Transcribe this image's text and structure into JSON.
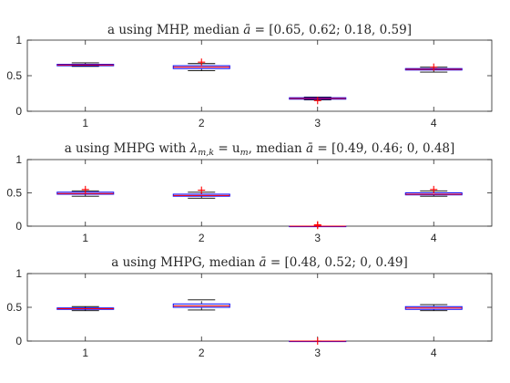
{
  "chart_data": [
    {
      "type": "box",
      "title": "a using MHP, median ā = [0.65, 0.62; 0.18, 0.59]",
      "title_prefix": "a using MHP, median ",
      "title_suffix": " = [0.65, 0.62; 0.18, 0.59]",
      "categories": [
        "1",
        "2",
        "3",
        "4"
      ],
      "ylim": [
        0,
        1
      ],
      "yticks": [
        "0",
        "0.5",
        "1"
      ],
      "boxes": [
        {
          "category": "1",
          "min": 0.63,
          "q1": 0.64,
          "median": 0.65,
          "q3": 0.66,
          "max": 0.68,
          "outliers": []
        },
        {
          "category": "2",
          "min": 0.57,
          "q1": 0.6,
          "median": 0.62,
          "q3": 0.64,
          "max": 0.67,
          "outliers": [
            0.69
          ]
        },
        {
          "category": "3",
          "min": 0.16,
          "q1": 0.17,
          "median": 0.18,
          "q3": 0.19,
          "max": 0.2,
          "outliers": [
            0.15
          ]
        },
        {
          "category": "4",
          "min": 0.55,
          "q1": 0.58,
          "median": 0.59,
          "q3": 0.6,
          "max": 0.62,
          "outliers": [
            0.62
          ]
        }
      ]
    },
    {
      "type": "box",
      "title": "a using MHPG with λ_{m,k} = u_m, median ā = [0.49, 0.46; 0, 0.48]",
      "title_prefix": "a using MHPG with ",
      "title_lambda": "λ",
      "title_lambda_sub": "m,k",
      "title_middle": " = u",
      "title_u_sub": "m",
      "title_middle2": ", median ",
      "title_suffix": " = [0.49, 0.46; 0, 0.48]",
      "categories": [
        "1",
        "2",
        "3",
        "4"
      ],
      "ylim": [
        0,
        1
      ],
      "yticks": [
        "0",
        "0.5",
        "1"
      ],
      "boxes": [
        {
          "category": "1",
          "min": 0.45,
          "q1": 0.48,
          "median": 0.49,
          "q3": 0.51,
          "max": 0.53,
          "outliers": [
            0.55
          ]
        },
        {
          "category": "2",
          "min": 0.42,
          "q1": 0.45,
          "median": 0.46,
          "q3": 0.48,
          "max": 0.51,
          "outliers": [
            0.54
          ]
        },
        {
          "category": "3",
          "min": 0.0,
          "q1": 0.0,
          "median": 0.0,
          "q3": 0.0,
          "max": 0.0,
          "outliers": [
            0.01,
            0.02
          ]
        },
        {
          "category": "4",
          "min": 0.45,
          "q1": 0.47,
          "median": 0.48,
          "q3": 0.5,
          "max": 0.53,
          "outliers": [
            0.55
          ]
        }
      ]
    },
    {
      "type": "box",
      "title": "a using MHPG, median ā = [0.48, 0.52; 0, 0.49]",
      "title_prefix": "a using MHPG, median ",
      "title_suffix": " = [0.48, 0.52; 0, 0.49]",
      "categories": [
        "1",
        "2",
        "3",
        "4"
      ],
      "ylim": [
        0,
        1
      ],
      "yticks": [
        "0",
        "0.5",
        "1"
      ],
      "boxes": [
        {
          "category": "1",
          "min": 0.45,
          "q1": 0.47,
          "median": 0.48,
          "q3": 0.49,
          "max": 0.51,
          "outliers": []
        },
        {
          "category": "2",
          "min": 0.46,
          "q1": 0.5,
          "median": 0.52,
          "q3": 0.55,
          "max": 0.61,
          "outliers": []
        },
        {
          "category": "3",
          "min": 0.0,
          "q1": 0.0,
          "median": 0.0,
          "q3": 0.0,
          "max": 0.0,
          "outliers": [
            0.0
          ]
        },
        {
          "category": "4",
          "min": 0.45,
          "q1": 0.47,
          "median": 0.49,
          "q3": 0.51,
          "max": 0.54,
          "outliers": []
        }
      ]
    }
  ],
  "abar_symbol": "ā",
  "colors": {
    "box": "#0000ff",
    "median": "#ff0000",
    "whisker": "#000000",
    "outlier": "#ff0000",
    "axis": "#262626"
  }
}
